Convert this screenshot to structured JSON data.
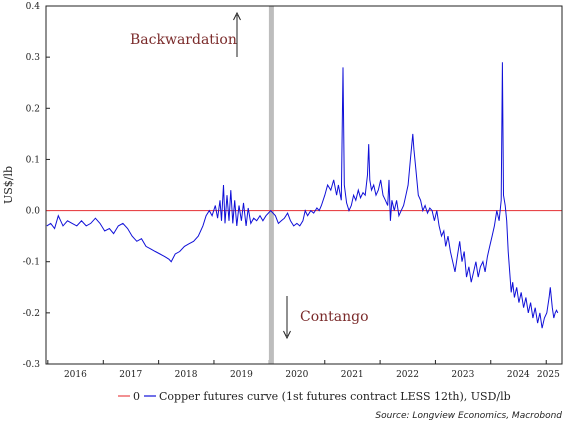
{
  "chart_data": {
    "type": "line",
    "ylabel": "US$/lb",
    "ylim": [
      -0.3,
      0.4
    ],
    "yticks": [
      -0.3,
      -0.2,
      -0.1,
      0.0,
      0.1,
      0.2,
      0.3,
      0.4
    ],
    "ytick_labels": [
      "-0.3",
      "-0.2",
      "-0.1",
      "0.0",
      "0.1",
      "0.2",
      "0.3",
      "0.4"
    ],
    "xlim": [
      "2015-12-20",
      "2025-04-15"
    ],
    "xtick_labels": [
      {
        "label": "2016",
        "date": "2016-07-01"
      },
      {
        "label": "2017",
        "date": "2017-07-01"
      },
      {
        "label": "2018",
        "date": "2018-07-01"
      },
      {
        "label": "2019",
        "date": "2019-07-01"
      },
      {
        "label": "2020",
        "date": "2020-07-01"
      },
      {
        "label": "2021",
        "date": "2021-07-01"
      },
      {
        "label": "2022",
        "date": "2022-07-01"
      },
      {
        "label": "2023",
        "date": "2023-07-01"
      },
      {
        "label": "2024",
        "date": "2024-07-01"
      },
      {
        "label": "2025",
        "date": "2025-01-15"
      }
    ],
    "year_boundaries": [
      "2016-01-01",
      "2017-01-01",
      "2018-01-01",
      "2019-01-01",
      "2020-01-01",
      "2021-01-01",
      "2022-01-01",
      "2023-01-01",
      "2024-01-01",
      "2025-01-01"
    ],
    "shaded_date": "2020-01-15",
    "grid": false,
    "annotations": [
      {
        "text": "Backwardation",
        "arrow": "up"
      },
      {
        "text": "Contango",
        "arrow": "down"
      }
    ],
    "reference_line": {
      "name": "0",
      "value": 0.0,
      "color": "#e8464a"
    },
    "series": [
      {
        "name": "Copper futures curve (1st futures contract LESS 12th), USD/lb",
        "color": "#1010d8",
        "points": [
          [
            "2015-12-25",
            -0.03
          ],
          [
            "2016-01-20",
            -0.025
          ],
          [
            "2016-02-15",
            -0.035
          ],
          [
            "2016-03-10",
            -0.01
          ],
          [
            "2016-04-10",
            -0.03
          ],
          [
            "2016-05-10",
            -0.02
          ],
          [
            "2016-06-10",
            -0.025
          ],
          [
            "2016-07-10",
            -0.03
          ],
          [
            "2016-08-10",
            -0.02
          ],
          [
            "2016-09-10",
            -0.03
          ],
          [
            "2016-10-10",
            -0.025
          ],
          [
            "2016-11-10",
            -0.015
          ],
          [
            "2016-12-10",
            -0.025
          ],
          [
            "2017-01-10",
            -0.04
          ],
          [
            "2017-02-10",
            -0.035
          ],
          [
            "2017-03-10",
            -0.045
          ],
          [
            "2017-04-10",
            -0.03
          ],
          [
            "2017-05-10",
            -0.025
          ],
          [
            "2017-06-10",
            -0.035
          ],
          [
            "2017-07-10",
            -0.05
          ],
          [
            "2017-08-10",
            -0.06
          ],
          [
            "2017-09-10",
            -0.055
          ],
          [
            "2017-10-10",
            -0.07
          ],
          [
            "2017-11-10",
            -0.075
          ],
          [
            "2017-12-10",
            -0.08
          ],
          [
            "2018-01-10",
            -0.085
          ],
          [
            "2018-02-10",
            -0.09
          ],
          [
            "2018-03-10",
            -0.095
          ],
          [
            "2018-03-25",
            -0.1
          ],
          [
            "2018-04-20",
            -0.085
          ],
          [
            "2018-05-20",
            -0.08
          ],
          [
            "2018-06-20",
            -0.07
          ],
          [
            "2018-07-20",
            -0.065
          ],
          [
            "2018-08-20",
            -0.06
          ],
          [
            "2018-09-20",
            -0.05
          ],
          [
            "2018-10-20",
            -0.03
          ],
          [
            "2018-11-10",
            -0.01
          ],
          [
            "2018-12-01",
            0.0
          ],
          [
            "2018-12-20",
            -0.01
          ],
          [
            "2019-01-10",
            0.01
          ],
          [
            "2019-01-25",
            -0.015
          ],
          [
            "2019-02-10",
            0.02
          ],
          [
            "2019-02-20",
            -0.02
          ],
          [
            "2019-03-05",
            0.05
          ],
          [
            "2019-03-15",
            -0.025
          ],
          [
            "2019-03-28",
            0.03
          ],
          [
            "2019-04-10",
            -0.02
          ],
          [
            "2019-04-22",
            0.04
          ],
          [
            "2019-05-05",
            -0.025
          ],
          [
            "2019-05-18",
            0.02
          ],
          [
            "2019-06-01",
            -0.03
          ],
          [
            "2019-06-15",
            0.01
          ],
          [
            "2019-07-01",
            -0.02
          ],
          [
            "2019-07-15",
            0.015
          ],
          [
            "2019-08-01",
            -0.03
          ],
          [
            "2019-08-15",
            0.005
          ],
          [
            "2019-09-01",
            -0.025
          ],
          [
            "2019-09-20",
            -0.015
          ],
          [
            "2019-10-10",
            -0.02
          ],
          [
            "2019-11-01",
            -0.01
          ],
          [
            "2019-11-20",
            -0.02
          ],
          [
            "2019-12-10",
            -0.01
          ],
          [
            "2020-01-10",
            0.0
          ],
          [
            "2020-02-10",
            -0.01
          ],
          [
            "2020-03-01",
            -0.025
          ],
          [
            "2020-03-20",
            -0.02
          ],
          [
            "2020-04-10",
            -0.015
          ],
          [
            "2020-05-01",
            -0.005
          ],
          [
            "2020-05-20",
            -0.02
          ],
          [
            "2020-06-10",
            -0.03
          ],
          [
            "2020-07-01",
            -0.025
          ],
          [
            "2020-07-20",
            -0.03
          ],
          [
            "2020-08-10",
            -0.02
          ],
          [
            "2020-08-25",
            0.0
          ],
          [
            "2020-09-10",
            -0.01
          ],
          [
            "2020-10-01",
            0.0
          ],
          [
            "2020-10-20",
            -0.005
          ],
          [
            "2020-11-10",
            0.005
          ],
          [
            "2020-11-25",
            0.0
          ],
          [
            "2020-12-10",
            0.01
          ],
          [
            "2021-01-01",
            0.03
          ],
          [
            "2021-01-20",
            0.05
          ],
          [
            "2021-02-10",
            0.04
          ],
          [
            "2021-03-01",
            0.06
          ],
          [
            "2021-03-20",
            0.03
          ],
          [
            "2021-04-01",
            0.05
          ],
          [
            "2021-04-20",
            0.02
          ],
          [
            "2021-05-01",
            0.28
          ],
          [
            "2021-05-10",
            0.05
          ],
          [
            "2021-05-25",
            0.015
          ],
          [
            "2021-06-10",
            0.0
          ],
          [
            "2021-06-25",
            0.01
          ],
          [
            "2021-07-10",
            0.03
          ],
          [
            "2021-07-25",
            0.02
          ],
          [
            "2021-08-10",
            0.04
          ],
          [
            "2021-08-25",
            0.025
          ],
          [
            "2021-09-10",
            0.035
          ],
          [
            "2021-09-25",
            0.03
          ],
          [
            "2021-10-10",
            0.07
          ],
          [
            "2021-10-18",
            0.13
          ],
          [
            "2021-10-25",
            0.06
          ],
          [
            "2021-11-05",
            0.04
          ],
          [
            "2021-11-20",
            0.05
          ],
          [
            "2021-12-05",
            0.03
          ],
          [
            "2021-12-20",
            0.04
          ],
          [
            "2022-01-05",
            0.06
          ],
          [
            "2022-01-20",
            0.03
          ],
          [
            "2022-02-05",
            0.02
          ],
          [
            "2022-02-20",
            0.01
          ],
          [
            "2022-03-01",
            0.06
          ],
          [
            "2022-03-10",
            -0.02
          ],
          [
            "2022-03-20",
            0.02
          ],
          [
            "2022-04-05",
            0.0
          ],
          [
            "2022-04-20",
            0.02
          ],
          [
            "2022-05-05",
            -0.01
          ],
          [
            "2022-05-20",
            0.0
          ],
          [
            "2022-06-05",
            0.01
          ],
          [
            "2022-06-20",
            0.03
          ],
          [
            "2022-07-05",
            0.05
          ],
          [
            "2022-07-20",
            0.1
          ],
          [
            "2022-08-05",
            0.15
          ],
          [
            "2022-08-12",
            0.12
          ],
          [
            "2022-08-25",
            0.08
          ],
          [
            "2022-09-10",
            0.03
          ],
          [
            "2022-09-25",
            0.02
          ],
          [
            "2022-10-10",
            0.0
          ],
          [
            "2022-10-25",
            0.01
          ],
          [
            "2022-11-10",
            -0.005
          ],
          [
            "2022-11-25",
            0.005
          ],
          [
            "2022-12-10",
            0.0
          ],
          [
            "2022-12-25",
            -0.02
          ],
          [
            "2023-01-10",
            0.0
          ],
          [
            "2023-01-25",
            -0.03
          ],
          [
            "2023-02-10",
            -0.05
          ],
          [
            "2023-02-25",
            -0.04
          ],
          [
            "2023-03-10",
            -0.07
          ],
          [
            "2023-03-25",
            -0.05
          ],
          [
            "2023-04-10",
            -0.08
          ],
          [
            "2023-04-25",
            -0.1
          ],
          [
            "2023-05-10",
            -0.12
          ],
          [
            "2023-05-25",
            -0.09
          ],
          [
            "2023-06-10",
            -0.06
          ],
          [
            "2023-06-25",
            -0.1
          ],
          [
            "2023-07-10",
            -0.08
          ],
          [
            "2023-07-25",
            -0.13
          ],
          [
            "2023-08-10",
            -0.11
          ],
          [
            "2023-08-25",
            -0.14
          ],
          [
            "2023-09-10",
            -0.12
          ],
          [
            "2023-09-25",
            -0.1
          ],
          [
            "2023-10-10",
            -0.13
          ],
          [
            "2023-10-25",
            -0.11
          ],
          [
            "2023-11-10",
            -0.1
          ],
          [
            "2023-11-25",
            -0.12
          ],
          [
            "2023-12-10",
            -0.09
          ],
          [
            "2023-12-25",
            -0.07
          ],
          [
            "2024-01-10",
            -0.05
          ],
          [
            "2024-01-25",
            -0.03
          ],
          [
            "2024-02-10",
            0.0
          ],
          [
            "2024-02-25",
            -0.02
          ],
          [
            "2024-03-10",
            0.02
          ],
          [
            "2024-03-18",
            0.29
          ],
          [
            "2024-03-25",
            0.03
          ],
          [
            "2024-04-05",
            0.01
          ],
          [
            "2024-04-15",
            -0.02
          ],
          [
            "2024-04-25",
            -0.08
          ],
          [
            "2024-05-05",
            -0.12
          ],
          [
            "2024-05-15",
            -0.16
          ],
          [
            "2024-05-25",
            -0.14
          ],
          [
            "2024-06-05",
            -0.17
          ],
          [
            "2024-06-20",
            -0.15
          ],
          [
            "2024-07-05",
            -0.18
          ],
          [
            "2024-07-20",
            -0.16
          ],
          [
            "2024-08-05",
            -0.19
          ],
          [
            "2024-08-20",
            -0.17
          ],
          [
            "2024-09-05",
            -0.2
          ],
          [
            "2024-09-20",
            -0.18
          ],
          [
            "2024-10-05",
            -0.21
          ],
          [
            "2024-10-20",
            -0.19
          ],
          [
            "2024-11-05",
            -0.22
          ],
          [
            "2024-11-20",
            -0.2
          ],
          [
            "2024-12-05",
            -0.23
          ],
          [
            "2024-12-20",
            -0.21
          ],
          [
            "2025-01-05",
            -0.2
          ],
          [
            "2025-01-20",
            -0.17
          ],
          [
            "2025-01-28",
            -0.15
          ],
          [
            "2025-02-10",
            -0.19
          ],
          [
            "2025-02-20",
            -0.21
          ],
          [
            "2025-03-01",
            -0.2
          ],
          [
            "2025-03-10",
            -0.195
          ],
          [
            "2025-03-18",
            -0.2
          ]
        ]
      }
    ],
    "source": "Source: Longview Economics, Macrobond"
  }
}
